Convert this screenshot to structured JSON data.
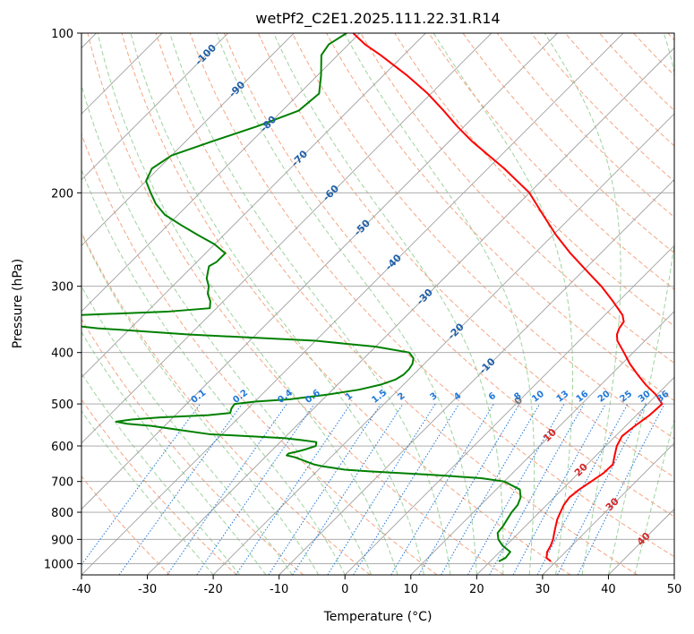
{
  "chart_data": {
    "type": "line",
    "title": "wetPf2_C2E1.2025.111.22.31.R14",
    "xlabel": "Temperature (°C)",
    "ylabel": "Pressure (hPa)",
    "xlim": [
      -40,
      50
    ],
    "ylim": [
      1050,
      100
    ],
    "y_scale": "log",
    "skew": 45,
    "x_ticks": [
      -40,
      -30,
      -20,
      -10,
      0,
      10,
      20,
      30,
      40,
      50
    ],
    "y_ticks": [
      100,
      200,
      300,
      400,
      500,
      600,
      700,
      800,
      900,
      1000
    ],
    "grid": true,
    "series": [
      {
        "color": "#ff0000",
        "style": "solid",
        "pressure": [
          990,
          975,
          950,
          925,
          900,
          875,
          850,
          825,
          800,
          775,
          750,
          725,
          700,
          675,
          650,
          625,
          600,
          575,
          550,
          525,
          500,
          480,
          460,
          440,
          420,
          400,
          380,
          370,
          360,
          350,
          340,
          320,
          300,
          280,
          260,
          240,
          220,
          200,
          180,
          160,
          150,
          140,
          130,
          120,
          110,
          105,
          100
        ],
        "values": [
          29.2,
          28.0,
          27.2,
          26.8,
          26.2,
          25.4,
          24.6,
          23.8,
          23.2,
          22.6,
          22.3,
          22.6,
          23.2,
          23.8,
          23.9,
          22.8,
          21.7,
          21.0,
          21.4,
          22.0,
          22.2,
          19.8,
          16.8,
          14.0,
          11.2,
          8.6,
          5.8,
          4.8,
          4.2,
          3.9,
          2.7,
          -0.9,
          -4.9,
          -9.6,
          -14.6,
          -19.6,
          -24.6,
          -30.0,
          -37.5,
          -46.5,
          -51.0,
          -55.5,
          -60.5,
          -66.5,
          -73.5,
          -77.5,
          -81.0
        ]
      },
      {
        "color": "#008000",
        "style": "solid",
        "pressure": [
          990,
          975,
          950,
          925,
          900,
          875,
          850,
          825,
          800,
          775,
          750,
          725,
          700,
          690,
          680,
          670,
          665,
          660,
          655,
          650,
          645,
          640,
          635,
          630,
          625,
          620,
          615,
          610,
          600,
          590,
          585,
          580,
          575,
          570,
          560,
          550,
          545,
          540,
          535,
          530,
          525,
          520,
          510,
          500,
          495,
          490,
          480,
          470,
          460,
          450,
          440,
          430,
          420,
          410,
          400,
          390,
          380,
          370,
          360,
          355,
          350,
          345,
          340,
          335,
          330,
          320,
          310,
          300,
          290,
          280,
          275,
          270,
          260,
          250,
          240,
          230,
          220,
          210,
          200,
          190,
          180,
          170,
          160,
          150,
          140,
          130,
          120,
          110,
          105,
          100
        ],
        "values": [
          21.3,
          21.8,
          21.6,
          19.5,
          17.9,
          16.8,
          16.6,
          16.2,
          15.8,
          15.6,
          14.9,
          13.6,
          10.0,
          6.0,
          -2.0,
          -12.0,
          -16.0,
          -18.0,
          -20.0,
          -21.5,
          -22.5,
          -23.5,
          -24.5,
          -25.5,
          -27.0,
          -27.0,
          -26.0,
          -25.2,
          -24.0,
          -24.5,
          -27.0,
          -30.0,
          -36.0,
          -42.0,
          -47.0,
          -52.0,
          -56.0,
          -58.0,
          -56.0,
          -52.0,
          -45.0,
          -42.0,
          -42.5,
          -42.7,
          -40.0,
          -35.0,
          -30.0,
          -26.0,
          -23.5,
          -22.0,
          -21.5,
          -21.5,
          -21.8,
          -22.5,
          -24.0,
          -30.0,
          -40.0,
          -60.0,
          -75.0,
          -80.0,
          -82.0,
          -82.5,
          -80.0,
          -67.0,
          -61.0,
          -62.0,
          -63.5,
          -64.5,
          -66.0,
          -67.0,
          -67.5,
          -67.0,
          -67.0,
          -70.0,
          -74.0,
          -78.0,
          -82.0,
          -85.0,
          -87.5,
          -90.0,
          -91.0,
          -90.0,
          -86.0,
          -81.5,
          -77.5,
          -77.0,
          -79.5,
          -82.5,
          -83.0,
          -82.0
        ]
      }
    ],
    "dry_adiabat_labels": [
      "-100",
      "-90",
      "-80",
      "-70",
      "-60",
      "-50",
      "-40",
      "-30",
      "-20",
      "-10",
      "0",
      "10",
      "20",
      "30",
      "40"
    ],
    "mixing_ratio_labels": [
      "0.1",
      "0.2",
      "0.4",
      "0.6",
      "1",
      "1.5",
      "2",
      "3",
      "4",
      "6",
      "8",
      "10",
      "13",
      "16",
      "20",
      "25",
      "30",
      "36"
    ],
    "colors": {
      "temperature": "#ff0000",
      "dewpoint": "#008000",
      "isotherm": "#a0a0a0",
      "dry_adiabat": "#f4a582",
      "moist_adiabat": "#9ed39e",
      "mixing_ratio": "#1f78d9",
      "label_cold": "#1f5fa8",
      "label_neutral": "#777777",
      "label_warm": "#d62728"
    }
  }
}
